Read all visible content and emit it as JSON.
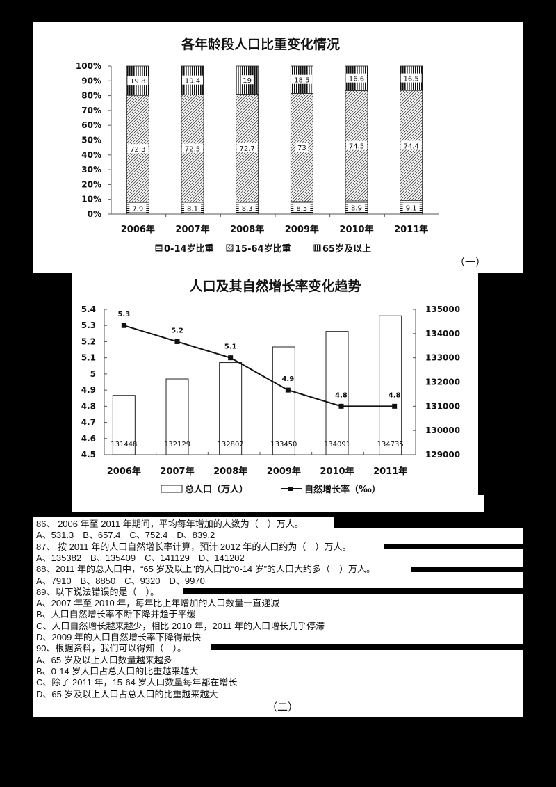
{
  "chart_data": [
    {
      "type": "bar",
      "stacked": true,
      "percent": true,
      "title": "各年龄段人口比重变化情况",
      "categories": [
        "2006年",
        "2007年",
        "2008年",
        "2009年",
        "2010年",
        "2011年"
      ],
      "series": [
        {
          "name": "0-14岁比重",
          "values": [
            7.9,
            8.1,
            8.3,
            8.5,
            8.9,
            9.1
          ]
        },
        {
          "name": "15-64岁比重",
          "values": [
            72.3,
            72.5,
            72.7,
            73,
            74.5,
            74.4
          ]
        },
        {
          "name": "65岁及以上",
          "values": [
            19.8,
            19.4,
            19,
            18.5,
            16.6,
            16.5
          ]
        }
      ],
      "ylabel": "",
      "xlabel": "",
      "yticks": [
        "0%",
        "10%",
        "20%",
        "30%",
        "40%",
        "50%",
        "60%",
        "70%",
        "80%",
        "90%",
        "100%"
      ],
      "ylim": [
        0,
        100
      ],
      "legend_position": "bottom",
      "grid": false
    },
    {
      "type": "bar+line",
      "title": "人口及其自然增长率变化趋势",
      "categories": [
        "2006年",
        "2007年",
        "2008年",
        "2009年",
        "2010年",
        "2011年"
      ],
      "series": [
        {
          "name": "总人口（万人）",
          "type": "bar",
          "axis": "right",
          "values": [
            131448,
            132129,
            132802,
            133450,
            134091,
            134735
          ]
        },
        {
          "name": "自然增长率（‰）",
          "type": "line",
          "axis": "left",
          "values": [
            5.3,
            5.2,
            5.1,
            4.9,
            4.8,
            4.8
          ]
        }
      ],
      "left_yticks": [
        "4.5",
        "4.6",
        "4.7",
        "4.8",
        "4.9",
        "5",
        "5.1",
        "5.2",
        "5.3",
        "5.4"
      ],
      "right_yticks": [
        "129000",
        "130000",
        "131000",
        "132000",
        "133000",
        "134000",
        "135000"
      ],
      "ylim_left": [
        4.5,
        5.4
      ],
      "ylim_right": [
        129000,
        135000
      ],
      "legend_position": "bottom",
      "grid": false
    }
  ],
  "section1": {
    "mark": "（一）"
  },
  "section2": {
    "mark": "（二）"
  },
  "questions": [
    "86、 2006 年至 2011 年期间，平均每年增加的人数为（　）万人。",
    "A、531.3　B、657.4　C、752.4　D、839.2",
    "87、 按 2011 年的人口自然增长率计算，预计 2012 年的人口约为（　）万人。",
    "A、135382　B、135409　C、141129　D、141202",
    "88、2011 年的总人口中，“65 岁及以上”的人口比“0-14 岁”的人口大约多（　）万人。",
    "A、7910　B、8850　C、9320　D、9970",
    "89、以下说法错误的是（　）。",
    "A、2007 年至 2010 年，每年比上年增加的人口数量一直递减",
    "B、人口自然增长率不断下降并趋于平缓",
    "C、人口自然增长越来越少，相比 2010 年，2011 年的人口增长几乎停滞",
    "D、2009 年的人口自然增长率下降得最快",
    "90、根据资料，我们可以得知（　）。",
    "A、65 岁及以上人口数量越来越多",
    "B、0-14 岁人口占总人口的比重越来越大",
    "C、除了 2011 年，15-64 岁人口数量每年都在增长",
    "D、65 岁及以上人口占总人口的比重越来越大"
  ]
}
